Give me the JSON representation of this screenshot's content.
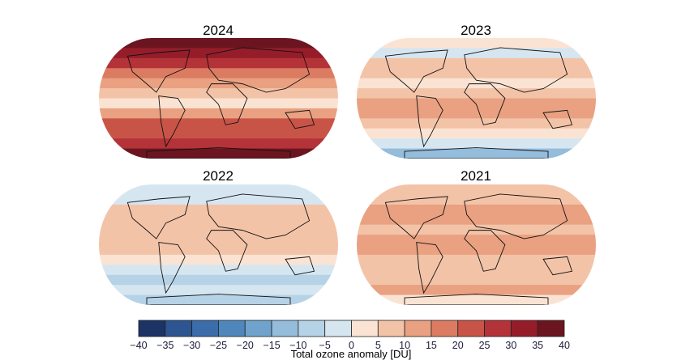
{
  "panels": [
    {
      "title": "2024",
      "zonal_anomaly_du": [
        35,
        30,
        25,
        15,
        10,
        5,
        0,
        10,
        20,
        20,
        25,
        35
      ]
    },
    {
      "title": "2023",
      "zonal_anomaly_du": [
        0,
        -5,
        5,
        5,
        0,
        5,
        10,
        10,
        5,
        0,
        -5,
        -15
      ]
    },
    {
      "title": "2022",
      "zonal_anomaly_du": [
        -5,
        -5,
        5,
        5,
        5,
        5,
        5,
        0,
        -5,
        -10,
        -5,
        -10
      ]
    },
    {
      "title": "2021",
      "zonal_anomaly_du": [
        5,
        5,
        10,
        10,
        5,
        10,
        10,
        5,
        5,
        5,
        10,
        0
      ]
    }
  ],
  "colorbar": {
    "label": "Total ozone anomaly [DU]",
    "ticks": [
      "−40",
      "−35",
      "−30",
      "−25",
      "−20",
      "−15",
      "−10",
      "−5",
      "0",
      "5",
      "10",
      "15",
      "20",
      "25",
      "30",
      "35",
      "40"
    ],
    "range": [
      -40,
      40
    ],
    "colors": [
      "#1c3366",
      "#2c5591",
      "#3a6daa",
      "#4f87bd",
      "#6fa3cc",
      "#94bcdb",
      "#b5d2e6",
      "#d6e6f1",
      "#fbe3d3",
      "#f3c3a8",
      "#e9a181",
      "#db7c62",
      "#c85448",
      "#b33338",
      "#951d2a",
      "#6b1520"
    ]
  }
}
